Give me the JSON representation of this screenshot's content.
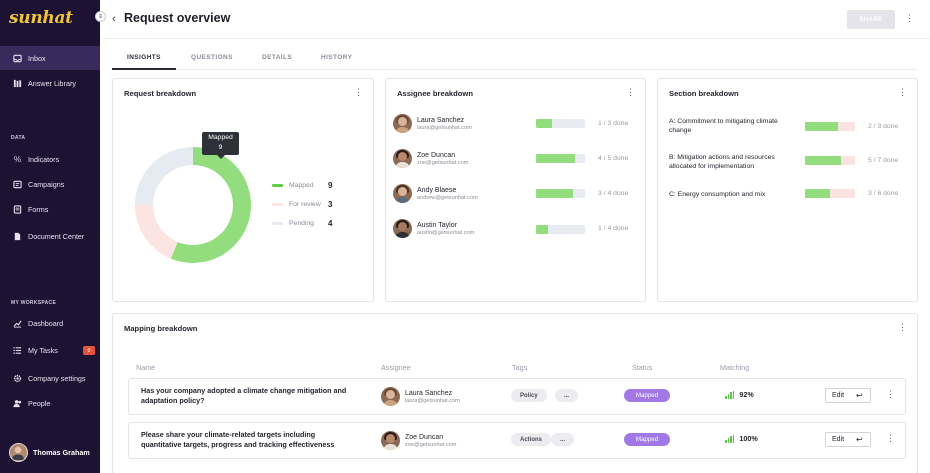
{
  "sidebar": {
    "logo": "sunhat",
    "items_top": [
      {
        "label": "Inbox",
        "icon": "inbox-icon",
        "active": true
      },
      {
        "label": "Answer Library",
        "icon": "library-icon"
      }
    ],
    "section_data": "DATA",
    "items_data": [
      {
        "label": "Indicators",
        "icon": "percent-icon"
      },
      {
        "label": "Campaigns",
        "icon": "campaign-icon"
      },
      {
        "label": "Forms",
        "icon": "forms-icon"
      },
      {
        "label": "Document Center",
        "icon": "document-icon"
      }
    ],
    "section_workspace": "MY WORKSPACE",
    "items_workspace": [
      {
        "label": "Dashboard",
        "icon": "chart-icon"
      },
      {
        "label": "My Tasks",
        "icon": "tasks-icon",
        "badge": "0"
      },
      {
        "label": "Company settings",
        "icon": "settings-icon"
      },
      {
        "label": "People",
        "icon": "people-icon"
      }
    ],
    "user_name": "Thomas Graham"
  },
  "header": {
    "title": "Request overview",
    "share_label": "SHARE"
  },
  "tabs": [
    {
      "label": "INSIGHTS",
      "active": true
    },
    {
      "label": "QUESTIONS"
    },
    {
      "label": "DETAILS"
    },
    {
      "label": "HISTORY"
    }
  ],
  "request_breakdown": {
    "title": "Request breakdown",
    "tooltip_label": "Mapped",
    "tooltip_value": "9",
    "legend": [
      {
        "label": "Mapped",
        "value": "9",
        "color": "#93dd7e"
      },
      {
        "label": "For review",
        "value": "3",
        "color": "#fbe4e2"
      },
      {
        "label": "Pending",
        "value": "4",
        "color": "#e6ebf2"
      }
    ]
  },
  "chart_data": {
    "type": "pie",
    "categories": [
      "Mapped",
      "For review",
      "Pending"
    ],
    "values": [
      9,
      3,
      4
    ],
    "title": "Request breakdown"
  },
  "assignee_breakdown": {
    "title": "Assignee breakdown",
    "people": [
      {
        "name": "Laura Sanchez",
        "email": "laura@getsunhat.com",
        "progress": "1 / 3 done",
        "fraction": 0.333
      },
      {
        "name": "Zoe Duncan",
        "email": "zoe@getsunhat.com",
        "progress": "4 / 5 done",
        "fraction": 0.8
      },
      {
        "name": "Andy Blaese",
        "email": "andrew@getsunhat.com",
        "progress": "3 / 4 done",
        "fraction": 0.75
      },
      {
        "name": "Austin Taylor",
        "email": "austin@getsunhat.com",
        "progress": "1 / 4 done",
        "fraction": 0.25
      }
    ]
  },
  "section_breakdown": {
    "title": "Section breakdown",
    "sections": [
      {
        "name": "A: Commitment to mitigating climate change",
        "progress": "2 / 3 done",
        "fraction": 0.667
      },
      {
        "name": "B: Mitigation actions and resources allocated for implementation",
        "progress": "5 / 7 done",
        "fraction": 0.714
      },
      {
        "name": "C: Energy consumption and mix",
        "progress": "3 / 6 done",
        "fraction": 0.5
      }
    ]
  },
  "mapping_breakdown": {
    "title": "Mapping breakdown",
    "columns": [
      "Name",
      "Assignee",
      "Tags",
      "Status",
      "Matching"
    ],
    "rows": [
      {
        "question": "Has your company adopted a climate change mitigation and adaptation policy?",
        "assignee": "Laura Sanchez",
        "email": "laura@getsunhat.com",
        "tag": "Policy",
        "tag_more": "...",
        "status": "Mapped",
        "matching": "92%",
        "edit": "Edit"
      },
      {
        "question": "Please share your climate-related targets including quantitative targets, progress and tracking effectiveness",
        "assignee": "Zoe Duncan",
        "email": "zoe@getsunhat.com",
        "tag": "Actions",
        "tag_more": "...",
        "status": "Mapped",
        "matching": "100%",
        "edit": "Edit"
      }
    ]
  }
}
